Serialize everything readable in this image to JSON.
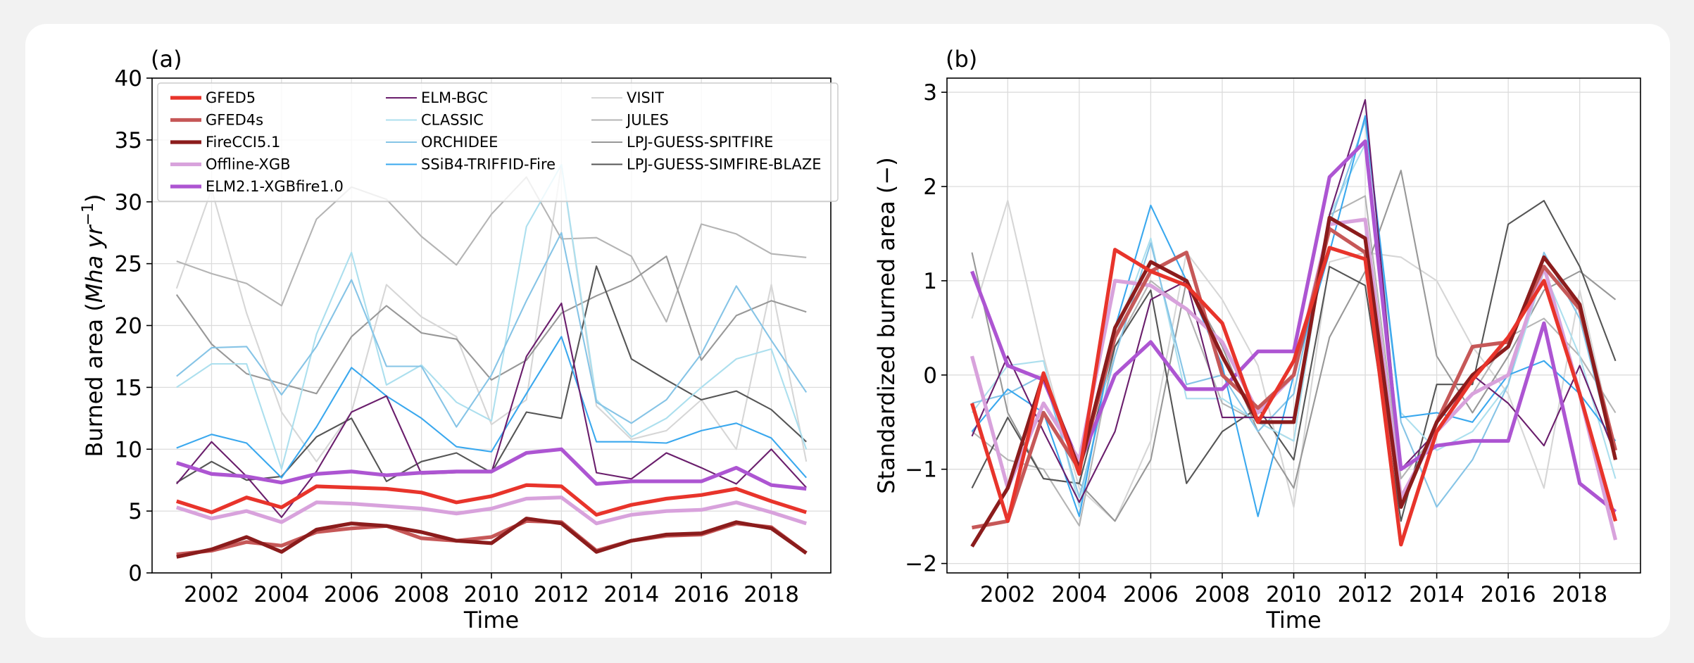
{
  "chart_data": [
    {
      "type": "line",
      "panel_label": "(a)",
      "xlabel": "Time",
      "ylabel": "Burned area (Mha yr⁻¹)",
      "ylabel_parts": {
        "prefix": "Burned area (",
        "unit_italic": "Mha yr",
        "sup": "−1",
        "suffix": ")"
      },
      "xlim": [
        2000.3,
        2019.7
      ],
      "ylim": [
        0,
        40
      ],
      "xticks": [
        2002,
        2004,
        2006,
        2008,
        2010,
        2012,
        2014,
        2016,
        2018
      ],
      "yticks": [
        0,
        5,
        10,
        15,
        20,
        25,
        30,
        35,
        40
      ],
      "grid": true,
      "legend_placement": "top",
      "x": [
        2001,
        2002,
        2003,
        2004,
        2005,
        2006,
        2007,
        2008,
        2009,
        2010,
        2011,
        2012,
        2013,
        2014,
        2015,
        2016,
        2017,
        2018,
        2019
      ],
      "series": [
        {
          "name": "VISIT",
          "color": "#d6d6d6",
          "width": 2,
          "values": [
            23,
            31,
            21,
            13,
            9,
            13,
            23.3,
            20.7,
            19.1,
            12,
            14,
            33,
            13.5,
            10.8,
            11.5,
            14,
            10,
            23.3,
            9
          ]
        },
        {
          "name": "JULES",
          "color": "#b4b4b4",
          "width": 2,
          "values": [
            25.2,
            24.2,
            23.4,
            21.6,
            28.6,
            31.2,
            30.2,
            27.2,
            24.9,
            29,
            32,
            27,
            27.1,
            25.6,
            20.3,
            28.2,
            27.4,
            25.8,
            25.5
          ]
        },
        {
          "name": "LPJ-GUESS-SPITFIRE",
          "color": "#989898",
          "width": 2,
          "values": [
            22.5,
            18.5,
            16.1,
            15.3,
            14.5,
            19.1,
            21.6,
            19.4,
            18.9,
            15.6,
            17.2,
            21,
            22.4,
            23.6,
            25.6,
            17.2,
            20.8,
            22.0,
            21.1
          ]
        },
        {
          "name": "LPJ-GUESS-SIMFIRE-BLAZE",
          "color": "#555555",
          "width": 2,
          "values": [
            7.3,
            9,
            7.5,
            7.8,
            11,
            12.5,
            7.4,
            9,
            9.7,
            8.1,
            13,
            12.5,
            24.8,
            17.3,
            15.6,
            14,
            14.7,
            13.2,
            10.6
          ]
        },
        {
          "name": "CLASSIC",
          "color": "#acdfee",
          "width": 2,
          "values": [
            15,
            16.9,
            16.9,
            8.4,
            19.3,
            25.9,
            15.2,
            16.8,
            13.8,
            12.3,
            28,
            33,
            14,
            11,
            12.5,
            15,
            17.3,
            18.1,
            10
          ]
        },
        {
          "name": "ORCHIDEE",
          "color": "#86c4e6",
          "width": 2,
          "values": [
            15.9,
            18.2,
            18.3,
            14.4,
            18.3,
            23.7,
            16.7,
            16.7,
            11.8,
            16,
            22,
            27.5,
            13.8,
            12.1,
            14,
            17.7,
            23.2,
            18.8,
            14.6
          ]
        },
        {
          "name": "SSiB4-TRIFFID-Fire",
          "color": "#3aa8ee",
          "width": 2,
          "values": [
            10.1,
            11.2,
            10.5,
            7.7,
            11.8,
            16.6,
            14.3,
            12.5,
            10.2,
            9.8,
            14.5,
            19.1,
            10.6,
            10.6,
            10.5,
            11.5,
            12.1,
            10.9,
            7.7
          ]
        },
        {
          "name": "ELM-BGC",
          "color": "#6a1e6c",
          "width": 2,
          "values": [
            7.2,
            10.6,
            7.8,
            4.5,
            8.2,
            13,
            14.3,
            8,
            8.1,
            8.1,
            17.5,
            21.8,
            8.1,
            7.6,
            9.7,
            8.5,
            7.2,
            10,
            6.9
          ]
        },
        {
          "name": "ELM2.1-XGBfire1.0",
          "color": "#ad55d2",
          "width": 5,
          "values": [
            8.9,
            8,
            7.8,
            7.3,
            8,
            8.2,
            7.9,
            8.1,
            8.2,
            8.2,
            9.7,
            10,
            7.2,
            7.4,
            7.4,
            7.4,
            8.5,
            7.1,
            6.8
          ]
        },
        {
          "name": "Offline-XGB",
          "color": "#d8a2dc",
          "width": 5,
          "values": [
            5.3,
            4.4,
            5,
            4.1,
            5.7,
            5.6,
            5.4,
            5.2,
            4.8,
            5.2,
            6,
            6.1,
            4,
            4.7,
            5,
            5.1,
            5.7,
            4.9,
            4
          ]
        },
        {
          "name": "GFED4s",
          "color": "#c65858",
          "width": 5,
          "values": [
            1.5,
            1.8,
            2.5,
            2.2,
            3.3,
            3.6,
            3.8,
            2.8,
            2.6,
            2.9,
            4.2,
            4.1,
            1.8,
            2.6,
            3,
            3.1,
            4,
            3.7,
            1.6
          ]
        },
        {
          "name": "FireCCI5.1",
          "color": "#8b1c1c",
          "width": 5,
          "values": [
            1.3,
            1.9,
            2.9,
            1.7,
            3.5,
            4,
            3.8,
            3.3,
            2.6,
            2.4,
            4.4,
            4,
            1.7,
            2.6,
            3.1,
            3.2,
            4.1,
            3.6,
            1.6
          ]
        },
        {
          "name": "GFED5",
          "color": "#e8342b",
          "width": 5,
          "values": [
            5.8,
            4.9,
            6.1,
            5.3,
            7,
            6.9,
            6.8,
            6.5,
            5.7,
            6.2,
            7.1,
            7,
            4.7,
            5.5,
            6,
            6.3,
            6.8,
            5.8,
            4.9
          ]
        }
      ],
      "legend": [
        {
          "name": "GFED5",
          "color": "#e8342b",
          "width": 5
        },
        {
          "name": "GFED4s",
          "color": "#c65858",
          "width": 5
        },
        {
          "name": "FireCCI5.1",
          "color": "#8b1c1c",
          "width": 5
        },
        {
          "name": "Offline-XGB",
          "color": "#d8a2dc",
          "width": 5
        },
        {
          "name": "ELM2.1-XGBfire1.0",
          "color": "#ad55d2",
          "width": 5
        },
        {
          "name": "ELM-BGC",
          "color": "#6a1e6c",
          "width": 2
        },
        {
          "name": "CLASSIC",
          "color": "#acdfee",
          "width": 2
        },
        {
          "name": "ORCHIDEE",
          "color": "#86c4e6",
          "width": 2
        },
        {
          "name": "SSiB4-TRIFFID-Fire",
          "color": "#3aa8ee",
          "width": 2
        },
        {
          "name": "VISIT",
          "color": "#d6d6d6",
          "width": 2
        },
        {
          "name": "JULES",
          "color": "#b4b4b4",
          "width": 2
        },
        {
          "name": "LPJ-GUESS-SPITFIRE",
          "color": "#989898",
          "width": 2
        },
        {
          "name": "LPJ-GUESS-SIMFIRE-BLAZE",
          "color": "#555555",
          "width": 2
        }
      ]
    },
    {
      "type": "line",
      "panel_label": "(b)",
      "xlabel": "Time",
      "ylabel": "Standardized burned area (−)",
      "xlim": [
        2000.3,
        2019.7
      ],
      "ylim": [
        -2.1,
        3.15
      ],
      "xticks": [
        2002,
        2004,
        2006,
        2008,
        2010,
        2012,
        2014,
        2016,
        2018
      ],
      "yticks": [
        -2,
        -1,
        0,
        1,
        2,
        3
      ],
      "grid": true,
      "x": [
        2001,
        2002,
        2003,
        2004,
        2005,
        2006,
        2007,
        2008,
        2009,
        2010,
        2011,
        2012,
        2013,
        2014,
        2015,
        2016,
        2017,
        2018,
        2019
      ],
      "series": [
        {
          "name": "VISIT",
          "color": "#d6d6d6",
          "width": 2,
          "values": [
            0.6,
            1.85,
            0.2,
            -1.2,
            -1.55,
            -0.7,
            1.3,
            0.8,
            0.1,
            -1.4,
            1.2,
            1.3,
            1.25,
            1.0,
            0.3,
            -0.2,
            -1.2,
            0.9,
            -0.8
          ]
        },
        {
          "name": "JULES",
          "color": "#b4b4b4",
          "width": 2,
          "values": [
            -0.6,
            -0.9,
            -1.0,
            -1.6,
            0.3,
            1.0,
            0.7,
            -0.3,
            -0.5,
            -0.7,
            1.7,
            1.9,
            -1.1,
            -0.6,
            -0.2,
            0.4,
            0.6,
            0.2,
            -0.4
          ]
        },
        {
          "name": "LPJ-GUESS-SPITFIRE",
          "color": "#989898",
          "width": 2,
          "values": [
            1.3,
            -0.4,
            -1.1,
            -1.15,
            -1.55,
            -0.9,
            1.0,
            0.3,
            -0.6,
            -1.2,
            0.4,
            1.1,
            2.17,
            0.2,
            -0.4,
            0.2,
            0.9,
            1.1,
            0.8
          ]
        },
        {
          "name": "LPJ-GUESS-SIMFIRE-BLAZE",
          "color": "#555555",
          "width": 2,
          "values": [
            -1.2,
            -0.45,
            -1.1,
            -1.15,
            0.3,
            0.9,
            -1.15,
            -0.6,
            -0.35,
            -0.9,
            1.15,
            0.95,
            -1.55,
            -0.1,
            -0.1,
            1.6,
            1.85,
            1.15,
            0.15
          ]
        },
        {
          "name": "CLASSIC",
          "color": "#acdfee",
          "width": 2,
          "values": [
            -0.4,
            0.1,
            0.15,
            -1.4,
            0.4,
            1.45,
            -0.25,
            -0.25,
            -0.5,
            -0.7,
            1.7,
            2.45,
            -0.4,
            -0.8,
            -0.6,
            -0.1,
            1.1,
            0.2,
            -1.1
          ]
        },
        {
          "name": "ORCHIDEE",
          "color": "#86c4e6",
          "width": 2,
          "values": [
            -0.3,
            -0.2,
            0.0,
            -1.3,
            0.2,
            1.4,
            -0.1,
            0.0,
            -0.6,
            -0.2,
            1.6,
            2.7,
            -0.5,
            -1.4,
            -0.9,
            -0.1,
            1.3,
            0.6,
            -0.9
          ]
        },
        {
          "name": "SSiB4-TRIFFID-Fire",
          "color": "#3aa8ee",
          "width": 2,
          "values": [
            -0.6,
            -0.15,
            -0.4,
            -1.5,
            0.5,
            1.8,
            1.0,
            0.1,
            -1.5,
            0.0,
            1.3,
            2.75,
            -0.45,
            -0.4,
            -0.5,
            0.0,
            0.15,
            -0.2,
            -0.7
          ]
        },
        {
          "name": "ELM-BGC",
          "color": "#6a1e6c",
          "width": 2,
          "values": [
            -0.65,
            0.2,
            -0.6,
            -1.35,
            -0.6,
            0.8,
            1.0,
            -0.45,
            -0.45,
            -0.45,
            1.7,
            2.92,
            -1.0,
            -0.6,
            0.0,
            -0.3,
            -0.75,
            0.1,
            -0.85
          ]
        },
        {
          "name": "ELM2.1-XGBfire1.0",
          "color": "#ad55d2",
          "width": 5,
          "values": [
            1.1,
            0.1,
            -0.05,
            -0.95,
            0.0,
            0.35,
            -0.15,
            -0.15,
            0.25,
            0.25,
            2.1,
            2.48,
            -1.0,
            -0.75,
            -0.7,
            -0.7,
            0.55,
            -1.15,
            -1.45
          ]
        },
        {
          "name": "Offline-XGB",
          "color": "#d8a2dc",
          "width": 5,
          "values": [
            0.2,
            -1.2,
            -0.3,
            -0.9,
            1.0,
            0.95,
            0.7,
            0.35,
            -0.4,
            0.0,
            1.6,
            1.65,
            -1.3,
            -0.6,
            -0.2,
            0.0,
            1.15,
            -0.2,
            -1.75
          ]
        },
        {
          "name": "GFED4s",
          "color": "#c65858",
          "width": 5,
          "values": [
            -1.62,
            -1.55,
            -0.4,
            -1.0,
            0.4,
            1.1,
            1.3,
            0.0,
            -0.35,
            0.0,
            1.55,
            1.3,
            -1.4,
            -0.5,
            0.3,
            0.35,
            1.15,
            0.7,
            -0.8
          ]
        },
        {
          "name": "FireCCI5.1",
          "color": "#8b1c1c",
          "width": 5,
          "values": [
            -1.82,
            -1.2,
            0.0,
            -1.0,
            0.5,
            1.2,
            1.0,
            0.2,
            -0.5,
            -0.5,
            1.67,
            1.45,
            -1.4,
            -0.5,
            0.0,
            0.3,
            1.25,
            0.75,
            -0.9
          ]
        },
        {
          "name": "GFED5",
          "color": "#e8342b",
          "width": 5,
          "values": [
            -0.3,
            -1.55,
            0.02,
            -1.05,
            1.33,
            1.1,
            0.95,
            0.55,
            -0.5,
            0.15,
            1.35,
            1.23,
            -1.8,
            -0.6,
            -0.05,
            0.4,
            1.0,
            -0.2,
            -1.55
          ]
        }
      ]
    }
  ]
}
